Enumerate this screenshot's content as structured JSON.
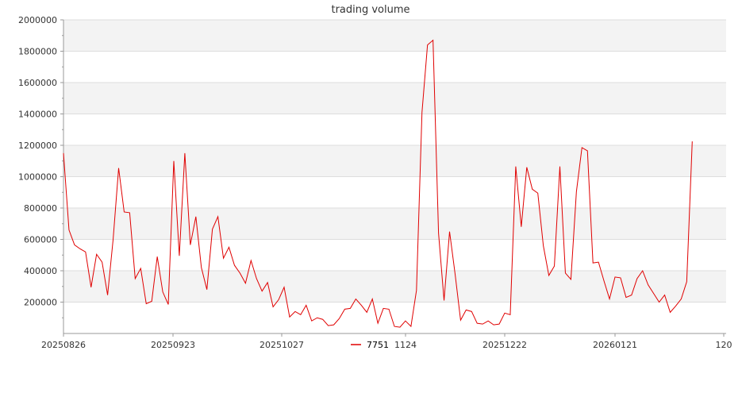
{
  "chart_data": {
    "type": "line",
    "title": "trading volume",
    "xlabel": "",
    "ylabel": "",
    "ylim": [
      0,
      2000000
    ],
    "yticks": [
      "200000",
      "400000",
      "600000",
      "800000",
      "1000000",
      "1200000",
      "1400000",
      "1600000",
      "1800000",
      "2000000"
    ],
    "xticks": [
      "20250826",
      "20250923",
      "20251027",
      "1124",
      "20251222",
      "20260121",
      "120"
    ],
    "grid": "horizontal alternating bands",
    "legend_placement": "bottom-center",
    "colors": {
      "series": "#e00000",
      "band": "#f3f3f3",
      "grid": "#dddddd",
      "axis": "#999999"
    },
    "series": [
      {
        "name": "7751",
        "x_start": "20250826",
        "values": [
          1150000,
          660000,
          565000,
          540000,
          520000,
          295000,
          505000,
          455000,
          245000,
          600000,
          1055000,
          775000,
          770000,
          350000,
          415000,
          190000,
          205000,
          490000,
          265000,
          185000,
          1100000,
          495000,
          1150000,
          565000,
          745000,
          420000,
          280000,
          665000,
          745000,
          480000,
          550000,
          435000,
          385000,
          320000,
          465000,
          350000,
          270000,
          325000,
          170000,
          215000,
          295000,
          105000,
          140000,
          120000,
          180000,
          80000,
          100000,
          90000,
          50000,
          55000,
          95000,
          155000,
          160000,
          220000,
          180000,
          135000,
          220000,
          65000,
          160000,
          155000,
          45000,
          40000,
          80000,
          45000,
          275000,
          1410000,
          1840000,
          1870000,
          640000,
          210000,
          650000,
          380000,
          85000,
          150000,
          140000,
          65000,
          60000,
          80000,
          55000,
          60000,
          130000,
          120000,
          1065000,
          680000,
          1060000,
          920000,
          895000,
          560000,
          370000,
          430000,
          1065000,
          385000,
          345000,
          905000,
          1185000,
          1165000,
          450000,
          455000,
          335000,
          220000,
          360000,
          355000,
          230000,
          245000,
          350000,
          400000,
          310000,
          255000,
          200000,
          245000,
          135000,
          175000,
          220000,
          330000,
          1225000
        ]
      }
    ]
  }
}
